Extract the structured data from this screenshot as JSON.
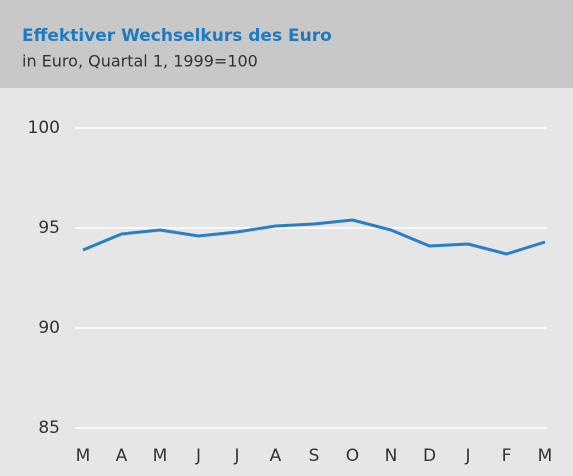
{
  "chart_data": {
    "type": "line",
    "title": "Effektiver Wechselkurs des Euro",
    "subtitle": "in Euro, Quartal 1, 1999=100",
    "categories": [
      "M",
      "A",
      "M",
      "J",
      "J",
      "A",
      "S",
      "O",
      "N",
      "D",
      "J",
      "F",
      "M"
    ],
    "series": [
      {
        "name": "Effektiver Wechselkurs",
        "color": "#2a7ec6",
        "values": [
          93.9,
          94.7,
          94.9,
          94.6,
          94.8,
          95.1,
          95.2,
          95.4,
          94.9,
          94.1,
          94.2,
          93.7,
          94.3
        ]
      }
    ],
    "ylim": [
      85,
      100
    ],
    "yticks": [
      85,
      90,
      95,
      100
    ],
    "grid": true
  }
}
